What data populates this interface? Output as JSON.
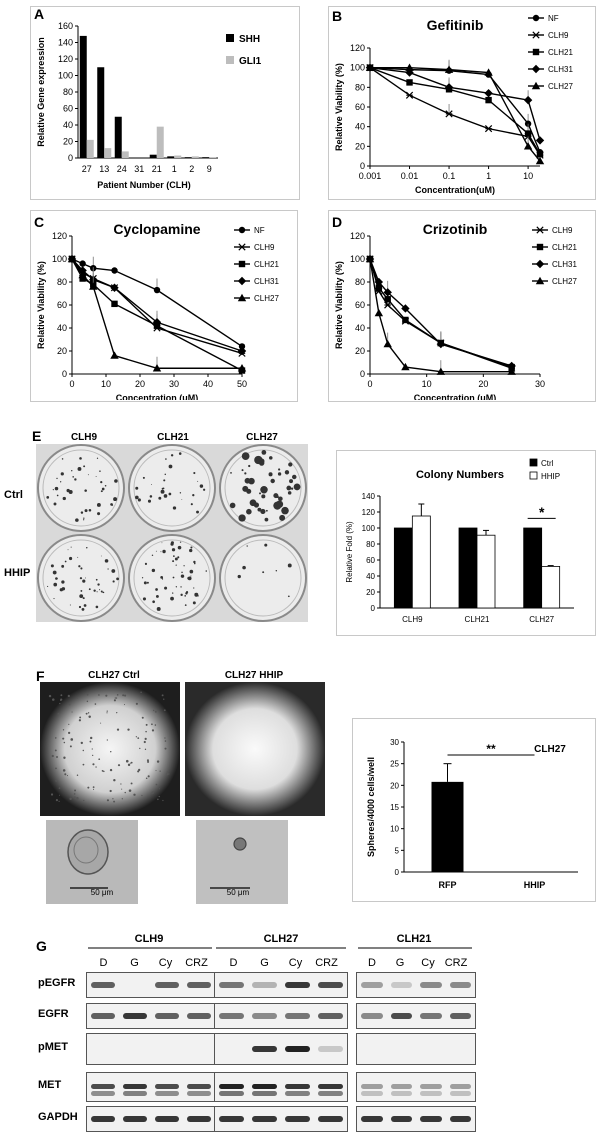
{
  "panels": {
    "A": {
      "letter": "A",
      "chart_data": {
        "type": "bar",
        "categories": [
          "27",
          "13",
          "24",
          "31",
          "21",
          "1",
          "2",
          "9"
        ],
        "series": [
          {
            "name": "SHH",
            "values": [
              148,
              110,
              50,
              0,
              4,
              2,
              1,
              1
            ],
            "color": "#000000"
          },
          {
            "name": "GLI1",
            "values": [
              22,
              12,
              8,
              0,
              38,
              3,
              2,
              1
            ],
            "color": "#bdbdbd"
          }
        ],
        "ylabel": "Relative Gene expression",
        "xlabel": "Patient Number (CLH)",
        "ylim": [
          0,
          160
        ],
        "yticks": [
          0,
          20,
          40,
          60,
          80,
          100,
          120,
          140,
          160
        ],
        "legend": "top-right"
      }
    },
    "B": {
      "letter": "B",
      "chart_data": {
        "type": "line",
        "title": "Gefitinib",
        "xlabel": "Concentration(uM)",
        "ylabel": "Relative Viability (%)",
        "xscale": "log",
        "xticks": [
          "0.001",
          "0.01",
          "0.1",
          "1",
          "10"
        ],
        "xlim": [
          0.001,
          20
        ],
        "ylim": [
          0,
          120
        ],
        "yticks": [
          0,
          20,
          40,
          60,
          80,
          100,
          120
        ],
        "legend": "right",
        "x": [
          0.001,
          0.01,
          0.1,
          1,
          10,
          20
        ],
        "series": [
          {
            "name": "NF",
            "marker": "circle",
            "values": [
              100,
              98,
              97,
              93,
              43,
              14
            ]
          },
          {
            "name": "CLH9",
            "marker": "star",
            "values": [
              100,
              72,
              53,
              38,
              30,
              11
            ]
          },
          {
            "name": "CLH21",
            "marker": "square",
            "values": [
              100,
              85,
              78,
              67,
              33,
              12
            ]
          },
          {
            "name": "CLH31",
            "marker": "diamond",
            "values": [
              100,
              95,
              80,
              74,
              67,
              26
            ]
          },
          {
            "name": "CLH27",
            "marker": "triangle",
            "values": [
              100,
              100,
              98,
              95,
              20,
              5
            ]
          }
        ]
      }
    },
    "C": {
      "letter": "C",
      "chart_data": {
        "type": "line",
        "title": "Cyclopamine",
        "xlabel": "Concentration (uM)",
        "ylabel": "Relative Viability (%)",
        "xlim": [
          0,
          50
        ],
        "xticks": [
          0,
          10,
          20,
          30,
          40,
          50
        ],
        "ylim": [
          0,
          120
        ],
        "yticks": [
          0,
          20,
          40,
          60,
          80,
          100,
          120
        ],
        "legend": "right",
        "x": [
          0,
          3.125,
          6.25,
          12.5,
          25,
          50
        ],
        "series": [
          {
            "name": "NF",
            "marker": "circle",
            "values": [
              100,
              96,
              92,
              90,
              73,
              24
            ]
          },
          {
            "name": "CLH9",
            "marker": "star",
            "values": [
              100,
              88,
              83,
              75,
              40,
              18
            ]
          },
          {
            "name": "CLH21",
            "marker": "square",
            "values": [
              100,
              83,
              78,
              61,
              42,
              3
            ]
          },
          {
            "name": "CLH31",
            "marker": "diamond",
            "values": [
              100,
              90,
              82,
              75,
              45,
              20
            ]
          },
          {
            "name": "CLH27",
            "marker": "triangle",
            "values": [
              100,
              86,
              76,
              16,
              5,
              5
            ]
          }
        ]
      }
    },
    "D": {
      "letter": "D",
      "chart_data": {
        "type": "line",
        "title": "Crizotinib",
        "xlabel": "Concentration (uM)",
        "ylabel": "Relative Viability (%)",
        "xlim": [
          0,
          30
        ],
        "xticks": [
          0,
          10,
          20,
          30
        ],
        "ylim": [
          0,
          120
        ],
        "yticks": [
          0,
          20,
          40,
          60,
          80,
          100,
          120
        ],
        "legend": "right",
        "x": [
          0,
          1.56,
          3.125,
          6.25,
          12.5,
          25
        ],
        "series": [
          {
            "name": "CLH9",
            "marker": "star",
            "values": [
              100,
              72,
              60,
              46,
              27,
              5
            ]
          },
          {
            "name": "CLH21",
            "marker": "square",
            "values": [
              100,
              75,
              65,
              47,
              27,
              6
            ]
          },
          {
            "name": "CLH31",
            "marker": "diamond",
            "values": [
              100,
              80,
              71,
              57,
              26,
              7
            ]
          },
          {
            "name": "CLH27",
            "marker": "triangle",
            "values": [
              100,
              53,
              26,
              6,
              2,
              2
            ]
          }
        ]
      }
    },
    "E": {
      "letter": "E",
      "plate_columns": [
        "CLH9",
        "CLH21",
        "CLH27"
      ],
      "plate_rows": [
        "Ctrl",
        "HHIP"
      ],
      "chart_data": {
        "type": "bar",
        "title": "Colony Numbers",
        "categories": [
          "CLH9",
          "CLH21",
          "CLH27"
        ],
        "series": [
          {
            "name": "Ctrl",
            "values": [
              100,
              100,
              100
            ],
            "color": "#000000"
          },
          {
            "name": "HHIP",
            "values": [
              115,
              91,
              52
            ],
            "color": "#ffffff"
          }
        ],
        "errors": [
          [
            0,
            0,
            0
          ],
          [
            15,
            6,
            1
          ]
        ],
        "ylabel": "Relative Fold (%)",
        "ylim": [
          0,
          140
        ],
        "yticks": [
          0,
          20,
          40,
          60,
          80,
          100,
          120,
          140
        ],
        "legend": "top-right",
        "significance": "*"
      }
    },
    "F": {
      "letter": "F",
      "image_labels": [
        "CLH27 Ctrl",
        "CLH27 HHIP"
      ],
      "scale_bar": "50 μm",
      "chart_data": {
        "type": "bar",
        "title": "CLH27",
        "categories": [
          "RFP",
          "HHIP"
        ],
        "values": [
          20.8,
          0
        ],
        "errors": [
          4.2,
          0
        ],
        "ylabel": "Spheres/4000 cells/well",
        "ylim": [
          0,
          30
        ],
        "yticks": [
          0,
          5,
          10,
          15,
          20,
          25,
          30
        ],
        "significance": "**"
      }
    },
    "G": {
      "letter": "G",
      "groups": [
        "CLH9",
        "CLH27",
        "CLH21"
      ],
      "lanes": [
        "D",
        "G",
        "Cy",
        "CRZ"
      ],
      "proteins": [
        "pEGFR",
        "EGFR",
        "pMET",
        "MET",
        "GAPDH"
      ]
    }
  }
}
